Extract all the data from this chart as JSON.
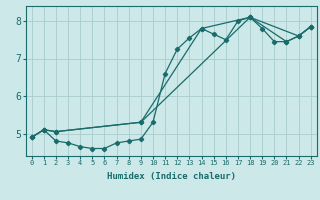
{
  "xlabel": "Humidex (Indice chaleur)",
  "background_color": "#cce8e8",
  "grid_color": "#aacccc",
  "line_color": "#1a6b6b",
  "xlim": [
    -0.5,
    23.5
  ],
  "ylim": [
    4.4,
    8.4
  ],
  "xticks": [
    0,
    1,
    2,
    3,
    4,
    5,
    6,
    7,
    8,
    9,
    10,
    11,
    12,
    13,
    14,
    15,
    16,
    17,
    18,
    19,
    20,
    21,
    22,
    23
  ],
  "yticks": [
    5,
    6,
    7,
    8
  ],
  "line1_x": [
    0,
    1,
    2,
    3,
    4,
    5,
    6,
    7,
    8,
    9,
    10,
    11,
    12,
    13,
    14,
    15,
    16,
    17,
    18,
    19,
    20,
    21,
    22,
    23
  ],
  "line1_y": [
    4.9,
    5.1,
    4.8,
    4.75,
    4.65,
    4.6,
    4.6,
    4.75,
    4.8,
    4.85,
    5.3,
    6.6,
    7.25,
    7.55,
    7.8,
    7.65,
    7.5,
    8.0,
    8.1,
    7.8,
    7.45,
    7.45,
    7.6,
    7.85
  ],
  "line2_x": [
    0,
    1,
    2,
    9,
    18,
    22,
    23
  ],
  "line2_y": [
    4.9,
    5.1,
    5.05,
    5.3,
    8.1,
    7.6,
    7.85
  ],
  "line3_x": [
    0,
    1,
    2,
    9,
    14,
    18,
    21,
    22,
    23
  ],
  "line3_y": [
    4.9,
    5.1,
    5.05,
    5.3,
    7.8,
    8.1,
    7.45,
    7.6,
    7.85
  ]
}
